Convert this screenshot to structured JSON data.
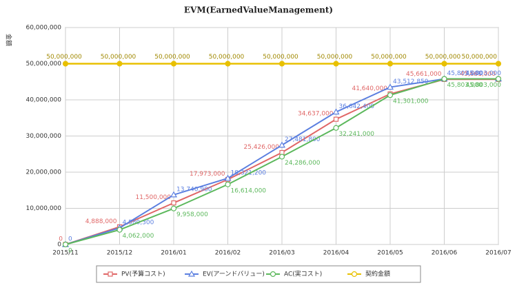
{
  "chart_data": {
    "type": "line",
    "title": "EVM(EarnedValueManagement)",
    "y_label": "金額",
    "categories": [
      "2015/11",
      "2015/12",
      "2016/01",
      "2016/02",
      "2016/03",
      "2016/04",
      "2016/05",
      "2016/06",
      "2016/07"
    ],
    "ylim": [
      0,
      60000000
    ],
    "yticks": [
      0,
      {
        "value": 10000000,
        "label": "10,000,000"
      },
      {
        "value": 20000000,
        "label": "20,000,000"
      },
      {
        "value": 30000000,
        "label": "30,000,000"
      },
      {
        "value": 40000000,
        "label": "40,000,000"
      },
      {
        "value": 50000000,
        "label": "50,000,000"
      },
      {
        "value": 60000000,
        "label": "60,000,000"
      }
    ],
    "grid": true,
    "legend": "bottom",
    "series": [
      {
        "name": "PV(予算コスト)",
        "color": "#e06666",
        "marker": "square",
        "values": [
          0,
          4888000,
          11500000,
          17973000,
          25426000,
          34637000,
          41640000,
          45661000,
          45661000
        ],
        "value_labels": [
          "0",
          "4,888,000",
          "11,500,000",
          "17,973,000",
          "25,426,000",
          "34,637,000",
          "41,640,000",
          "45,661,000",
          "45,661,000"
        ]
      },
      {
        "name": "EV(アーンドバリュー)",
        "color": "#5b7fe0",
        "marker": "triangle",
        "values": [
          0,
          4580300,
          13740900,
          18321200,
          27481800,
          36642400,
          43512850,
          45803000,
          45803000
        ],
        "value_labels": [
          "0",
          "4,580,300",
          "13,740,900",
          "18,321,200",
          "27,481,800",
          "36,642,400",
          "43,512,850",
          "45,803,000",
          "45,803,000"
        ]
      },
      {
        "name": "AC(実コスト)",
        "color": "#5cb85c",
        "marker": "circle",
        "values": [
          0,
          4062000,
          9958000,
          16614000,
          24286000,
          32241000,
          41301000,
          45803000,
          45803000
        ],
        "value_labels": [
          "0",
          "4,062,000",
          "9,958,000",
          "16,614,000",
          "24,286,000",
          "32,241,000",
          "41,301,000",
          "45,803,000",
          "45,803,000"
        ]
      },
      {
        "name": "契約金額",
        "color": "#e8c000",
        "marker": "circle",
        "values": [
          50000000,
          50000000,
          50000000,
          50000000,
          50000000,
          50000000,
          50000000,
          50000000,
          50000000
        ],
        "value_labels": [
          "50,000,000",
          "50,000,000",
          "50,000,000",
          "50,000,000",
          "50,000,000",
          "50,000,000",
          "50,000,000",
          "50,000,000",
          "50,000,000"
        ]
      }
    ]
  }
}
